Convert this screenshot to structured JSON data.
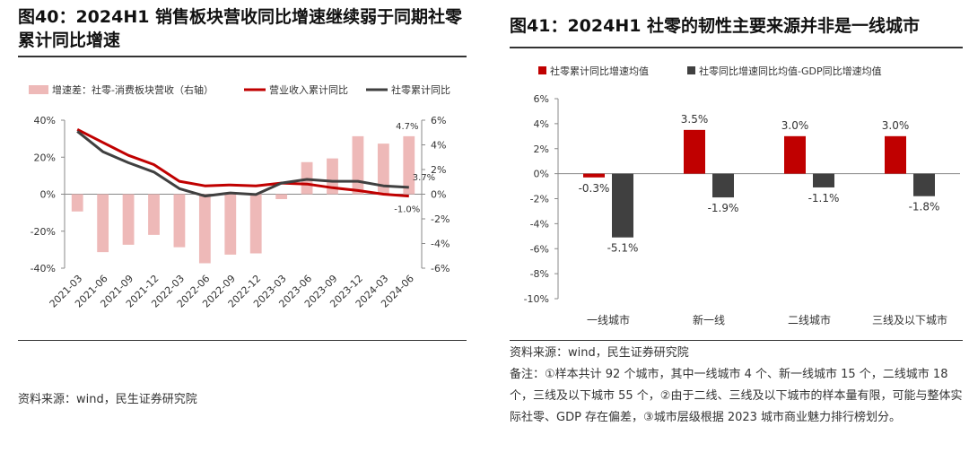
{
  "left": {
    "title": "图40：2024H1 销售板块营收同比增速继续弱于同期社零累计同比增速",
    "source": "资料来源：wind，民生证券研究院"
  },
  "right": {
    "title": "图41：2024H1 社零的韧性主要来源并非是一线城市",
    "source": "资料来源：wind，民生证券研究院",
    "note": "备注：①样本共计 92 个城市，其中一线城市 4 个、新一线城市 15 个，二线城市 18 个，三线及以下城市 55 个，②由于二线、三线及以下城市的样本量有限，可能与整体实际社零、GDP 存在偏差，③城市层级根据 2023 城市商业魅力排行榜划分。"
  },
  "chart_data": [
    {
      "type": "bar+line",
      "categories": [
        "2021-03",
        "2021-06",
        "2021-09",
        "2021-12",
        "2022-03",
        "2022-06",
        "2022-09",
        "2022-12",
        "2023-03",
        "2023-06",
        "2023-09",
        "2023-12",
        "2024-03",
        "2024-06"
      ],
      "legend": [
        "增速差：社零-消费板块营收（右轴）",
        "营业收入累计同比",
        "社零累计同比"
      ],
      "left_axis": {
        "ylim": [
          -40,
          40
        ],
        "ticks": [
          "40%",
          "20%",
          "0%",
          "-20%",
          "-40%"
        ]
      },
      "right_axis": {
        "ylim": [
          -6,
          6
        ],
        "ticks": [
          "6%",
          "4%",
          "2%",
          "0%",
          "-2%",
          "-4%",
          "-6%"
        ]
      },
      "series": [
        {
          "name": "增速差：社零-消费板块营收（右轴）",
          "axis": "right",
          "kind": "bar",
          "color": "#eeb9b8",
          "values": [
            -1.4,
            -4.7,
            -4.1,
            -3.3,
            -4.3,
            -5.6,
            -4.9,
            -4.8,
            -0.4,
            2.6,
            2.9,
            4.7,
            4.1,
            4.7
          ]
        },
        {
          "name": "营业收入累计同比",
          "axis": "left",
          "kind": "line",
          "color": "#c00000",
          "values": [
            35,
            28,
            21,
            16,
            7,
            4.5,
            5,
            4.5,
            6,
            5.5,
            3.5,
            2,
            0,
            -1.0
          ]
        },
        {
          "name": "社零累计同比",
          "axis": "left",
          "kind": "line",
          "color": "#404040",
          "values": [
            34,
            23,
            17,
            12,
            3,
            -1,
            0.7,
            -0.2,
            6,
            8,
            7,
            7,
            4.5,
            3.7
          ]
        }
      ],
      "annotations": [
        "4.7%",
        "3.7%",
        "-1.0%"
      ]
    },
    {
      "type": "bar",
      "categories": [
        "一线城市",
        "新一线",
        "二线城市",
        "三线及以下城市"
      ],
      "ylim": [
        -10,
        6
      ],
      "y_ticks": [
        "6%",
        "4%",
        "2%",
        "0%",
        "-2%",
        "-4%",
        "-6%",
        "-8%",
        "-10%"
      ],
      "series": [
        {
          "name": "社零累计同比增速均值",
          "color": "#c00000",
          "values": [
            -0.3,
            3.5,
            3.0,
            3.0
          ],
          "labels": [
            "-0.3%",
            "3.5%",
            "3.0%",
            "3.0%"
          ]
        },
        {
          "name": "社零同比增速同比均值-GDP同比增速均值",
          "color": "#404040",
          "values": [
            -5.1,
            -1.9,
            -1.1,
            -1.8
          ],
          "labels": [
            "-5.1%",
            "-1.9%",
            "-1.1%",
            "-1.8%"
          ]
        }
      ]
    }
  ]
}
